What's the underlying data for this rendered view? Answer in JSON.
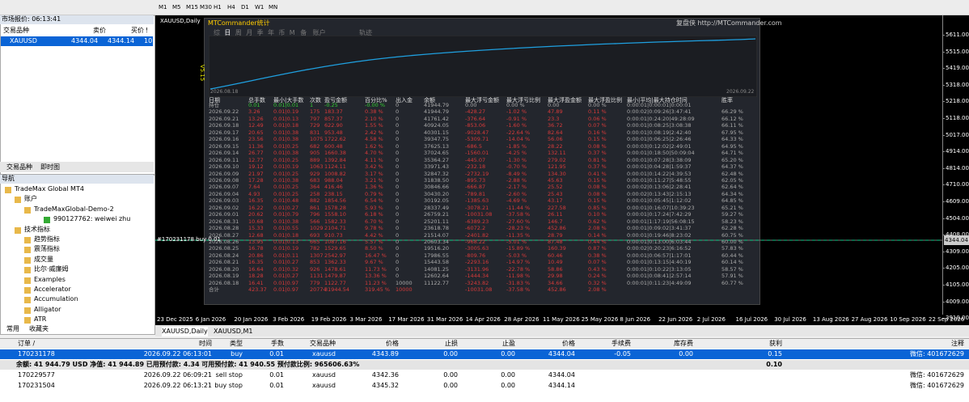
{
  "toolbar": {
    "timeframes": [
      "M1",
      "M5",
      "M15",
      "M30",
      "H1",
      "H4",
      "D1",
      "W1",
      "MN"
    ]
  },
  "market_watch": {
    "title": "市场报价: 06:13:41",
    "headers": [
      "交易品种",
      "卖价",
      "买价",
      "!"
    ],
    "rows": [
      [
        "XAUUSD",
        "4344.04",
        "4344.14",
        "10"
      ]
    ],
    "tabs": [
      "交易品种",
      "即时图"
    ]
  },
  "navigator": {
    "title": "导航",
    "items": [
      "TradeMax Global MT4",
      "账户",
      "TradeMaxGlobal-Demo-2",
      "990127762: weiwei zhu",
      "技术指标",
      "趋势指标",
      "震荡指标",
      "成交量",
      "比尔·威廉姆",
      "Examples",
      "Accelerator",
      "Accumulation",
      "Alligator",
      "ATR"
    ],
    "tabs": [
      "常用",
      "收藏夹"
    ]
  },
  "chart": {
    "title": "XAUUSD,Daily",
    "version": "V5.15",
    "order_label": "#170231178 buy 0.01",
    "price_labels": [
      "5611.00",
      "5515.00",
      "5419.00",
      "5318.00",
      "5218.00",
      "5118.00",
      "5017.00",
      "4914.00",
      "4814.00",
      "4710.00",
      "4609.00",
      "4504.00",
      "4408.00",
      "4309.00",
      "4205.00",
      "4105.00",
      "4009.00",
      "3910.00"
    ],
    "current_price": "4344.04",
    "dates": [
      "23 Dec 2025",
      "6 Jan 2026",
      "20 Jan 2026",
      "3 Feb 2026",
      "19 Feb 2026",
      "3 Mar 2026",
      "17 Mar 2026",
      "31 Mar 2026",
      "14 Apr 2026",
      "28 Apr 2026",
      "11 May 2026",
      "25 May 2026",
      "8 Jun 2026",
      "22 Jun 2026",
      "2 Jul 2026",
      "16 Jul 2026",
      "30 Jul 2026",
      "13 Aug 2026",
      "27 Aug 2026",
      "10 Sep 2026",
      "22 Sep 2026"
    ],
    "tabs": [
      "XAUUSD,Daily",
      "XAUUSD,M1"
    ]
  },
  "commander": {
    "title": "MTCommander统计",
    "link": "复盘侠 http://MTCommander.com",
    "tabs": [
      "综",
      "日",
      "周",
      "月",
      "季",
      "年",
      "币",
      "M",
      "备",
      "账户"
    ],
    "track": "轨迹",
    "curve_start": "2026.08.18",
    "curve_end": "2026.09.22",
    "headers": [
      "日期",
      "总手数",
      "最小|大手数",
      "次数",
      "盈亏金额",
      "百分比%",
      "出入金",
      "余额",
      "最大浮亏金额",
      "最大浮亏比例",
      "最大浮盈金额",
      "最大浮盈比例",
      "最小|平均|最大持仓时间",
      "胜率"
    ],
    "rows": [
      [
        "持仓",
        "0.01",
        "0.01|0.01",
        "1",
        "-0.25",
        "-0.00 %",
        "0",
        "41944.79",
        "0.00",
        "0.00 %",
        "0.00",
        "0.00 %",
        "0:00:01|0:00:01|0:00:01"
      ],
      [
        "2026.09.22",
        "3.26",
        "0.01|0.19",
        "175",
        "183.37",
        "0.38 %",
        "0",
        "41944.79",
        "-428.27",
        "-1.02 %",
        "47.89",
        "0.11 %",
        "0:00:02|0:09:26|3:47:41",
        "66.29 %"
      ],
      [
        "2026.09.21",
        "13.26",
        "0.01|0.13",
        "797",
        "857.37",
        "2.10 %",
        "0",
        "41761.42",
        "-376.64",
        "-0.91 %",
        "23.3",
        "0.06 %",
        "0:00:01|0:24:20|49:28:09",
        "66.12 %"
      ],
      [
        "2026.09.18",
        "12.49",
        "0.01|0.18",
        "729",
        "622.90",
        "1.55 %",
        "0",
        "40924.05",
        "-853.06",
        "-1.60 %",
        "36.72",
        "0.07 %",
        "0:00:01|0:08:25|3:08:38",
        "66.11 %"
      ],
      [
        "2026.09.17",
        "20.65",
        "0.01|0.38",
        "831",
        "953.48",
        "2.42 %",
        "0",
        "40301.15",
        "-9028.47",
        "-22.64 %",
        "82.64",
        "0.16 %",
        "0:00:01|0:08:19|2:42:40",
        "67.95 %"
      ],
      [
        "2026.09.16",
        "23.56",
        "0.01|0.38",
        "1075",
        "1722.62",
        "4.58 %",
        "0",
        "39347.75",
        "-5309.71",
        "-14.04 %",
        "56.06",
        "0.15 %",
        "0:00:01|0:06:25|2:26:46",
        "64.33 %"
      ],
      [
        "2026.09.15",
        "11.36",
        "0.01|0.25",
        "682",
        "600.48",
        "1.62 %",
        "0",
        "37625.13",
        "-686.5",
        "-1.85 %",
        "28.22",
        "0.08 %",
        "0:00:03|0:12:02|2:49:01",
        "64.95 %"
      ],
      [
        "2026.09.14",
        "26.77",
        "0.01|0.38",
        "905",
        "1660.38",
        "4.70 %",
        "0",
        "37024.65",
        "-1560.01",
        "-4.25 %",
        "132.11",
        "0.37 %",
        "0:00:01|0:18:50|50:09:04",
        "64.71 %"
      ],
      [
        "2026.09.11",
        "12.77",
        "0.01|0.25",
        "889",
        "1392.84",
        "4.11 %",
        "0",
        "35364.27",
        "-445.07",
        "-1.30 %",
        "279.02",
        "0.81 %",
        "0:00:01|0:07:28|3:38:09",
        "65.20 %"
      ],
      [
        "2026.09.10",
        "19.12",
        "0.01|0.19",
        "1063",
        "1124.11",
        "3.42 %",
        "0",
        "33971.43",
        "-232.18",
        "-0.70 %",
        "121.95",
        "0.37 %",
        "0:00:01|0:04:28|1:59:37",
        "64.37 %"
      ],
      [
        "2026.09.09",
        "21.97",
        "0.01|0.25",
        "929",
        "1008.82",
        "3.17 %",
        "0",
        "32847.32",
        "-2732.19",
        "-8.49 %",
        "134.30",
        "0.41 %",
        "0:00:01|0:14:22|4:39:53",
        "62.48 %"
      ],
      [
        "2026.09.08",
        "17.28",
        "0.01|0.38",
        "683",
        "988.04",
        "3.21 %",
        "0",
        "31838.50",
        "-895.73",
        "-2.88 %",
        "45.63",
        "0.15 %",
        "0:00:01|0:11:27|5:48:55",
        "62.05 %"
      ],
      [
        "2026.09.07",
        "7.64",
        "0.01|0.25",
        "364",
        "416.46",
        "1.36 %",
        "0",
        "30846.66",
        "-666.87",
        "-2.17 %",
        "25.52",
        "0.08 %",
        "0:00:02|0:13:06|2:28:41",
        "62.64 %"
      ],
      [
        "2026.09.04",
        "4.93",
        "0.01|0.25",
        "258",
        "238.15",
        "0.79 %",
        "0",
        "30430.20",
        "-789.81",
        "-2.60 %",
        "25.43",
        "0.08 %",
        "0:00:02|0:13:43|2:15:13",
        "64.34 %"
      ],
      [
        "2026.09.03",
        "16.35",
        "0.01|0.48",
        "882",
        "1854.56",
        "6.54 %",
        "0",
        "30192.05",
        "-1385.63",
        "-4.69 %",
        "43.17",
        "0.15 %",
        "0:00:01|0:05:45|1:12:02",
        "64.85 %"
      ],
      [
        "2026.09.02",
        "16.22",
        "0.01|0.27",
        "861",
        "1578.28",
        "5.93 %",
        "0",
        "28337.49",
        "-3078.21",
        "-11.44 %",
        "227.58",
        "0.85 %",
        "0:00:01|0:16:07|10:39:23",
        "65.21 %"
      ],
      [
        "2026.09.01",
        "20.62",
        "0.01|0.79",
        "796",
        "1558.10",
        "6.18 %",
        "0",
        "26759.21",
        "-10031.08",
        "-37.58 %",
        "26.11",
        "0.10 %",
        "0:00:01|0:17:24|7:42:29",
        "59.27 %"
      ],
      [
        "2026.08.31",
        "10.68",
        "0.01|0.38",
        "566",
        "1582.33",
        "6.70 %",
        "0",
        "25201.11",
        "-6389.23",
        "-27.60 %",
        "146.7",
        "0.62 %",
        "0:00:01|1:17:19|56:08:15",
        "58.23 %"
      ],
      [
        "2026.08.28",
        "15.33",
        "0.01|0.55",
        "1029",
        "2104.71",
        "9.78 %",
        "0",
        "23618.78",
        "-6072.2",
        "-28.23 %",
        "452.86",
        "2.08 %",
        "0:00:01|0:09:02|3:41:37",
        "62.28 %"
      ],
      [
        "2026.08.27",
        "12.68",
        "0.01|0.18",
        "693",
        "910.73",
        "4.42 %",
        "0",
        "21514.07",
        "-2401.82",
        "-11.35 %",
        "28.79",
        "0.14 %",
        "0:00:01|0:19:46|8:23:02",
        "60.75 %"
      ],
      [
        "2026.08.26",
        "13.95",
        "0.01|0.13",
        "665",
        "1087.16",
        "5.57 %",
        "0",
        "20603.34",
        "-968.22",
        "-5.01 %",
        "87.48",
        "0.44 %",
        "0:00:01|0:13:00|6:03:44",
        "60.00 %"
      ],
      [
        "2026.08.25",
        "16.78",
        "0.01|0.19",
        "782",
        "1529.65",
        "8.50 %",
        "0",
        "19516.20",
        "-3005.63",
        "-15.89 %",
        "160.39",
        "0.87 %",
        "0:00:02|0:20:23|6:16:52",
        "57.83 %"
      ],
      [
        "2026.08.24",
        "20.86",
        "0.01|0.11",
        "1307",
        "2542.97",
        "16.47 %",
        "0",
        "17986.55",
        "-809.76",
        "-5.03 %",
        "60.46",
        "0.38 %",
        "0:00:01|0:06:57|1:17:01",
        "60.44 %"
      ],
      [
        "2026.08.21",
        "16.35",
        "0.01|0.27",
        "853",
        "1362.33",
        "9.67 %",
        "0",
        "15443.58",
        "-2293.16",
        "-14.97 %",
        "10.49",
        "0.07 %",
        "0:00:01|0:13:15|4:40:19",
        "60.14 %"
      ],
      [
        "2026.08.20",
        "16.64",
        "0.01|0.32",
        "926",
        "1478.61",
        "11.73 %",
        "0",
        "14081.25",
        "-3131.96",
        "-22.78 %",
        "58.86",
        "0.43 %",
        "0:00:01|0:10:22|3:13:05",
        "58.57 %"
      ],
      [
        "2026.08.19",
        "18.28",
        "0.01|0.27",
        "1131",
        "1479.87",
        "13.36 %",
        "0",
        "12602.64",
        "-1444.34",
        "-11.98 %",
        "29.98",
        "0.24 %",
        "0:00:01|0:08:41|2:57:14",
        "57.91 %"
      ],
      [
        "2026.08.18",
        "16.41",
        "0.01|0.97",
        "779",
        "1122.77",
        "11.23 %",
        "10000",
        "11122.77",
        "-3243.82",
        "-31.83 %",
        "34.66",
        "0.32 %",
        "0:00:01|0:11:23|4:49:09",
        "60.77 %"
      ],
      [
        "合计",
        "423.37",
        "0.01|0.97",
        "20774",
        "31944.54",
        "319.45 %",
        "10000",
        "",
        "-10031.08",
        "-37.58 %",
        "452.86",
        "2.08 %"
      ]
    ]
  },
  "terminal": {
    "headers": [
      "订单 /",
      "时间",
      "类型",
      "手数",
      "交易品种",
      "价格",
      "止损",
      "止盈",
      "价格",
      "手续费",
      "库存费",
      "获利",
      "注释"
    ],
    "orders": [
      [
        "170231178",
        "2026.09.22 06:13:01",
        "buy",
        "0.01",
        "xauusd",
        "4343.89",
        "0.00",
        "0.00",
        "4344.04",
        "-0.05",
        "0.00",
        "0.15",
        "微信: 401672629"
      ]
    ],
    "summary": "余额: 41 944.79 USD  净值: 41 944.89  已用预付款: 4.34  可用预付款: 41 940.55  预付款比例: 965606.63%",
    "summary_profit": "0.10",
    "pending": [
      [
        "170229577",
        "2026.09.22 06:09:21",
        "sell stop",
        "0.01",
        "xauusd",
        "4342.36",
        "0.00",
        "0.00",
        "4344.04",
        "微信: 401672629"
      ],
      [
        "170231504",
        "2026.09.22 06:13:21",
        "buy stop",
        "0.01",
        "xauusd",
        "4345.32",
        "0.00",
        "0.00",
        "4344.14",
        "微信: 401672629"
      ]
    ]
  }
}
